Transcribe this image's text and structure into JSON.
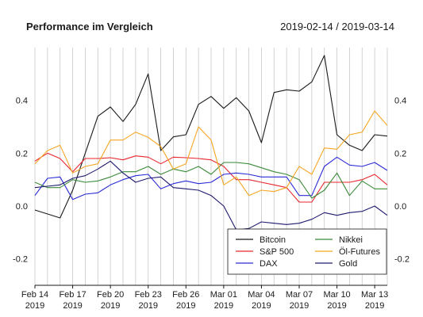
{
  "title": "Performance im Vergleich",
  "date_range": "2019-02-14 / 2019-03-14",
  "chart_data": {
    "type": "line",
    "x": [
      "Feb 14",
      "Feb 15",
      "Feb 16",
      "Feb 17",
      "Feb 18",
      "Feb 19",
      "Feb 20",
      "Feb 21",
      "Feb 22",
      "Feb 23",
      "Feb 24",
      "Feb 25",
      "Feb 26",
      "Feb 27",
      "Feb 28",
      "Mar 01",
      "Mar 02",
      "Mar 03",
      "Mar 04",
      "Mar 05",
      "Mar 06",
      "Mar 07",
      "Mar 08",
      "Mar 09",
      "Mar 10",
      "Mar 11",
      "Mar 12",
      "Mar 13",
      "Mar 14"
    ],
    "x_ticks": [
      {
        "line1": "Feb 14",
        "line2": "2019",
        "index": 0
      },
      {
        "line1": "Feb 17",
        "line2": "2019",
        "index": 3
      },
      {
        "line1": "Feb 20",
        "line2": "2019",
        "index": 6
      },
      {
        "line1": "Feb 23",
        "line2": "2019",
        "index": 9
      },
      {
        "line1": "Feb 26",
        "line2": "2019",
        "index": 12
      },
      {
        "line1": "Mar 01",
        "line2": "2019",
        "index": 15
      },
      {
        "line1": "Mar 04",
        "line2": "2019",
        "index": 18
      },
      {
        "line1": "Mar 07",
        "line2": "2019",
        "index": 21
      },
      {
        "line1": "Mar 10",
        "line2": "2019",
        "index": 24
      },
      {
        "line1": "Mar 13",
        "line2": "2019",
        "index": 27
      }
    ],
    "y_ticks": [
      -0.2,
      0.0,
      0.2,
      0.4
    ],
    "y_tick_labels": [
      "-0.2",
      "0.0",
      "0.2",
      "0.4"
    ],
    "ylim": [
      -0.3,
      0.6
    ],
    "grid": "vertical",
    "legend_position": "bottom-right",
    "series": [
      {
        "name": "Bitcoin",
        "color": "#1a1a1a",
        "values": [
          -0.015,
          -0.03,
          -0.045,
          0.06,
          0.2,
          0.34,
          0.375,
          0.32,
          0.385,
          0.5,
          0.21,
          0.262,
          0.27,
          0.385,
          0.415,
          0.37,
          0.41,
          0.36,
          0.24,
          0.43,
          0.44,
          0.435,
          0.47,
          0.57,
          0.27,
          0.23,
          0.21,
          0.27,
          0.265
        ]
      },
      {
        "name": "S&P 500",
        "color": "#e8262d",
        "values": [
          0.17,
          0.2,
          0.18,
          0.13,
          0.18,
          0.18,
          0.183,
          0.175,
          0.19,
          0.185,
          0.16,
          0.185,
          0.183,
          0.18,
          0.175,
          0.15,
          0.1,
          0.1,
          0.09,
          0.08,
          0.07,
          0.015,
          0.015,
          0.09,
          0.09,
          0.09,
          0.1,
          0.12,
          0.08
        ]
      },
      {
        "name": "DAX",
        "color": "#2b2bd6",
        "values": [
          0.04,
          0.105,
          0.11,
          0.025,
          0.045,
          0.05,
          0.08,
          0.1,
          0.115,
          0.12,
          0.065,
          0.085,
          0.095,
          0.085,
          0.09,
          0.12,
          0.125,
          0.12,
          0.11,
          0.11,
          0.11,
          0.04,
          0.04,
          0.15,
          0.185,
          0.155,
          0.15,
          0.165,
          0.135
        ]
      },
      {
        "name": "Nikkei",
        "color": "#3a8a3a",
        "values": [
          0.09,
          0.07,
          0.07,
          0.1,
          0.09,
          0.095,
          0.11,
          0.13,
          0.13,
          0.15,
          0.12,
          0.14,
          0.13,
          0.15,
          0.12,
          0.165,
          0.165,
          0.16,
          0.145,
          0.13,
          0.12,
          0.1,
          0.03,
          0.06,
          0.125,
          0.04,
          0.095,
          0.065,
          0.065
        ]
      },
      {
        "name": "Öl-Futures",
        "color": "#f5a623",
        "values": [
          0.16,
          0.21,
          0.23,
          0.125,
          0.15,
          0.16,
          0.25,
          0.25,
          0.28,
          0.26,
          0.225,
          0.14,
          0.16,
          0.3,
          0.25,
          0.08,
          0.11,
          0.04,
          0.06,
          0.055,
          0.07,
          0.15,
          0.12,
          0.22,
          0.215,
          0.27,
          0.28,
          0.36,
          0.305
        ]
      },
      {
        "name": "Gold",
        "color": "#1f1a6e",
        "values": [
          0.07,
          0.075,
          0.08,
          0.105,
          0.115,
          0.14,
          0.17,
          0.125,
          0.09,
          0.105,
          0.11,
          0.07,
          0.065,
          0.06,
          0.04,
          0.0,
          -0.09,
          -0.085,
          -0.06,
          -0.065,
          -0.07,
          -0.065,
          -0.05,
          -0.025,
          -0.035,
          -0.025,
          -0.02,
          0.0,
          -0.035
        ]
      }
    ]
  }
}
